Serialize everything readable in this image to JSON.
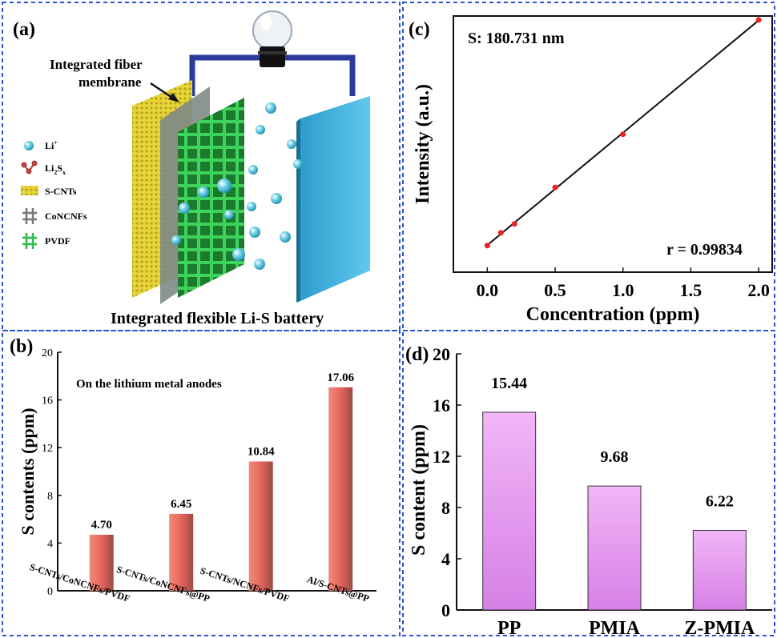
{
  "panels": {
    "a": {
      "tag": "(a)",
      "callout": [
        "Integrated fiber",
        "membrane"
      ],
      "legend": [
        {
          "label": "Li",
          "sup": "+",
          "icon": "li-ion-sphere-icon"
        },
        {
          "label": "Li",
          "sub": "2",
          "label2": "S",
          "sub2": "x",
          "icon": "polysulfide-molecule-icon"
        },
        {
          "label": "S-CNTs",
          "icon": "s-cnts-swatch-icon"
        },
        {
          "label": "CoNCNFs",
          "icon": "concnfs-grid-icon"
        },
        {
          "label": "PVDF",
          "icon": "pvdf-grid-icon"
        }
      ],
      "caption": "Integrated flexible Li-S battery"
    },
    "b": {
      "tag": "(b)"
    },
    "c": {
      "tag": "(c)"
    },
    "d": {
      "tag": "(d)"
    }
  },
  "chart_data": [
    {
      "panel": "b",
      "type": "bar",
      "annotation": "On the lithium metal anodes",
      "ylabel": "S contents (ppm)",
      "xlabel": "",
      "categories": [
        "S-CNTs/CoNCNFs/PVDF",
        "S-CNTs/CoNCNFs@PP",
        "S-CNTs/NCNFs/PVDF",
        "Al/S-CNTs@PP"
      ],
      "values": [
        4.7,
        6.45,
        10.84,
        17.06
      ],
      "data_labels": [
        "4.70",
        "6.45",
        "10.84",
        "17.06"
      ],
      "ylim": [
        0,
        20
      ],
      "yticks": [
        0,
        4,
        8,
        12,
        16,
        20
      ],
      "bar_color": "#e8746a"
    },
    {
      "panel": "c",
      "type": "scatter",
      "xlabel": "Concentration (ppm)",
      "ylabel": "Intensity (a.u.)",
      "annotations": [
        "S: 180.731 nm",
        "r = 0.99834"
      ],
      "x": [
        0,
        0.1,
        0.2,
        0.5,
        1.0,
        2.0
      ],
      "y": [
        0.035,
        0.1,
        0.145,
        0.33,
        0.6,
        1.18
      ],
      "fit_line": true,
      "xlim": [
        -0.25,
        2.1
      ],
      "ylim": [
        -0.1,
        1.2
      ],
      "xticks": [
        "0.0",
        "0.5",
        "1.0",
        "1.5",
        "2.0"
      ],
      "point_color": "#ee2222"
    },
    {
      "panel": "d",
      "type": "bar",
      "ylabel": "S content (ppm)",
      "xlabel": "",
      "categories": [
        "PP",
        "PMIA",
        "Z-PMIA"
      ],
      "values": [
        15.44,
        9.68,
        6.22
      ],
      "data_labels": [
        "15.44",
        "9.68",
        "6.22"
      ],
      "ylim": [
        0,
        20
      ],
      "yticks": [
        0,
        4,
        8,
        12,
        16,
        20
      ],
      "bar_color": "#e69af0"
    }
  ]
}
